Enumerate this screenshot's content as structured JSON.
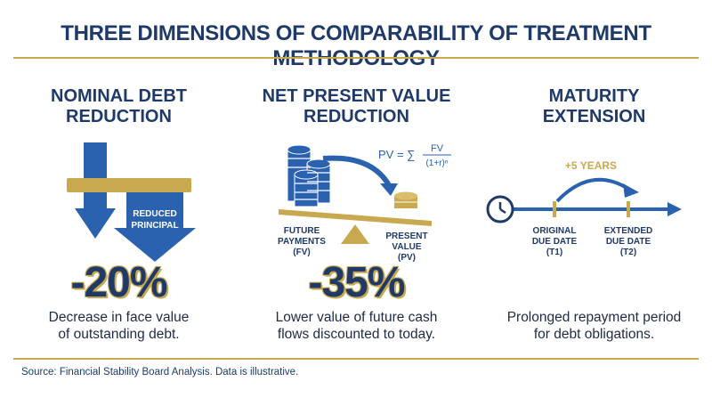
{
  "title": "THREE DIMENSIONS OF COMPARABILITY OF TREATMENT METHODOLOGY",
  "colors": {
    "navy": "#1f3a68",
    "blue": "#2a62b0",
    "gold": "#c9a94f"
  },
  "columns": [
    {
      "heading_line1": "NOMINAL DEBT",
      "heading_line2": "REDUCTION",
      "icon_label_line1": "REDUCED",
      "icon_label_line2": "PRINCIPAL",
      "value": "-20%",
      "desc_line1": "Decrease in face value",
      "desc_line2": "of outstanding debt."
    },
    {
      "heading_line1": "NET PRESENT VALUE",
      "heading_line2": "REDUCTION",
      "formula_lhs": "PV = ∑",
      "formula_num": "FV",
      "formula_den": "(1+r)ⁿ",
      "left_label_1": "FUTURE",
      "left_label_2": "PAYMENTS",
      "left_label_3": "(FV)",
      "right_label_1": "PRESENT",
      "right_label_2": "VALUE",
      "right_label_3": "(PV)",
      "value": "-35%",
      "desc_line1": "Lower value of future cash",
      "desc_line2": "flows discounted to today."
    },
    {
      "heading_line1": "MATURITY",
      "heading_line2": "EXTENSION",
      "arc_label": "+5 YEARS",
      "t1_line1": "ORIGINAL",
      "t1_line2": "DUE DATE",
      "t1_line3": "(T1)",
      "t2_line1": "EXTENDED",
      "t2_line2": "DUE DATE",
      "t2_line3": "(T2)",
      "value": "",
      "desc_line1": "Prolonged repayment period",
      "desc_line2": "for debt obligations."
    }
  ],
  "source": "Source: Financial Stability Board Analysis. Data is illustrative."
}
